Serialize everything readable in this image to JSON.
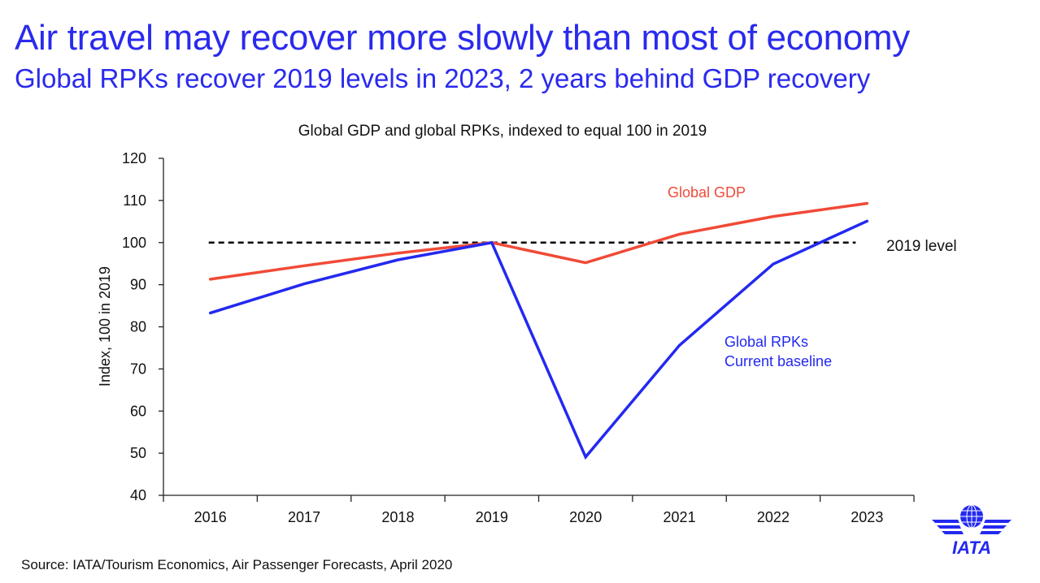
{
  "header": {
    "title": "Air travel may recover more slowly than most of economy",
    "subtitle": "Global RPKs recover 2019 levels in 2023, 2 years behind GDP recovery"
  },
  "footer": {
    "source": "Source: IATA/Tourism Economics, Air Passenger Forecasts, April 2020",
    "logo_text": "IATA",
    "logo_icon": "iata-globe-wings-logo"
  },
  "colors": {
    "title": "#2a2aee",
    "gdp": "#f04a37",
    "rpk": "#2329f0",
    "reference": "#000000"
  },
  "chart_data": {
    "type": "line",
    "title": "Global GDP and global RPKs, indexed to equal 100 in 2019",
    "xlabel": "",
    "ylabel": "Index, 100 in 2019",
    "ylim": [
      40,
      120
    ],
    "yticks": [
      40,
      50,
      60,
      70,
      80,
      90,
      100,
      110,
      120
    ],
    "grid": false,
    "categories": [
      "2016",
      "2017",
      "2018",
      "2019",
      "2020",
      "2021",
      "2022",
      "2023"
    ],
    "series": [
      {
        "name": "Global GDP",
        "label_lines": [
          "Global GDP"
        ],
        "color": "#f04a37",
        "values": [
          91.3,
          94.5,
          97.5,
          100,
          95.2,
          102.0,
          106.2,
          109.3
        ]
      },
      {
        "name": "Global RPKs Current baseline",
        "label_lines": [
          "Global RPKs",
          "Current baseline"
        ],
        "color": "#2329f0",
        "values": [
          83.3,
          90.2,
          95.9,
          100,
          49.1,
          75.6,
          94.9,
          105.1
        ]
      }
    ],
    "reference_line": {
      "name": "2019 level",
      "value": 100,
      "style": "dashed",
      "color": "#000000"
    }
  }
}
